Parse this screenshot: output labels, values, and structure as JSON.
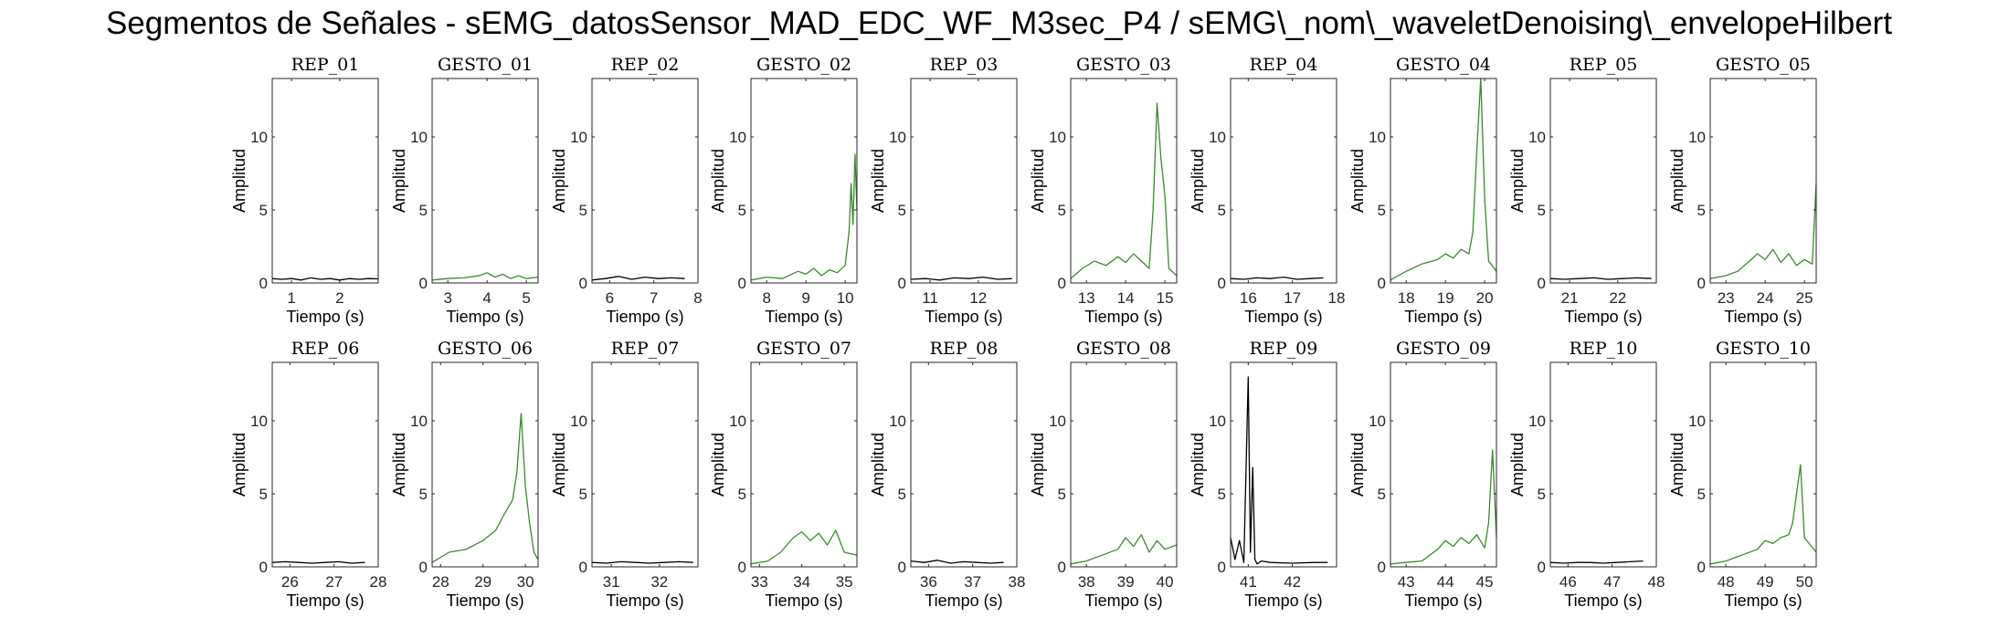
{
  "figure_title": "Segmentos de Señales - sEMG_datosSensor_MAD_EDC_WF_M3sec_P4 / sEMG\\_nom\\_waveletDenoising\\_envelopeHilbert",
  "colors": {
    "rep": "#000000",
    "gesto": "#3a8a2e",
    "axes": "#262626"
  },
  "chart_data": [
    {
      "type": "line",
      "title": "REP_01",
      "xlabel": "Tiempo (s)",
      "ylabel": "Amplitud",
      "xlim": [
        0.6,
        2.8
      ],
      "ylim": [
        0,
        14
      ],
      "xticks": [
        1,
        2
      ],
      "yticks": [
        0,
        5,
        10
      ],
      "grid": false,
      "series": [
        {
          "color": "#000000",
          "x": [
            0.6,
            0.8,
            1.0,
            1.2,
            1.4,
            1.6,
            1.8,
            2.0,
            2.2,
            2.4,
            2.6,
            2.8
          ],
          "y": [
            0.3,
            0.25,
            0.3,
            0.2,
            0.35,
            0.25,
            0.3,
            0.2,
            0.3,
            0.25,
            0.3,
            0.28
          ]
        }
      ]
    },
    {
      "type": "line",
      "title": "GESTO_01",
      "xlabel": "Tiempo (s)",
      "ylabel": "Amplitud",
      "xlim": [
        2.6,
        5.3
      ],
      "ylim": [
        0,
        14
      ],
      "xticks": [
        3,
        4,
        5
      ],
      "yticks": [
        0,
        5,
        10
      ],
      "grid": false,
      "series": [
        {
          "color": "#3a8a2e",
          "x": [
            2.6,
            3.0,
            3.4,
            3.8,
            4.0,
            4.2,
            4.4,
            4.6,
            4.8,
            5.0,
            5.3
          ],
          "y": [
            0.2,
            0.3,
            0.35,
            0.5,
            0.7,
            0.4,
            0.6,
            0.3,
            0.5,
            0.3,
            0.4
          ]
        }
      ]
    },
    {
      "type": "line",
      "title": "REP_02",
      "xlabel": "Tiempo (s)",
      "ylabel": "Amplitud",
      "xlim": [
        5.6,
        8.0
      ],
      "ylim": [
        0,
        14
      ],
      "xticks": [
        6,
        7,
        8
      ],
      "yticks": [
        0,
        5,
        10
      ],
      "grid": false,
      "series": [
        {
          "color": "#000000",
          "x": [
            5.6,
            5.9,
            6.2,
            6.5,
            6.8,
            7.1,
            7.4,
            7.7
          ],
          "y": [
            0.2,
            0.3,
            0.45,
            0.25,
            0.4,
            0.3,
            0.35,
            0.3
          ]
        }
      ]
    },
    {
      "type": "line",
      "title": "GESTO_02",
      "xlabel": "Tiempo (s)",
      "ylabel": "Amplitud",
      "xlim": [
        7.6,
        10.3
      ],
      "ylim": [
        0,
        14
      ],
      "xticks": [
        8,
        9,
        10
      ],
      "yticks": [
        0,
        5,
        10
      ],
      "grid": false,
      "series": [
        {
          "color": "#3a8a2e",
          "x": [
            7.6,
            8.0,
            8.4,
            8.8,
            9.0,
            9.2,
            9.4,
            9.6,
            9.8,
            10.0,
            10.1,
            10.15,
            10.2,
            10.25,
            10.3
          ],
          "y": [
            0.2,
            0.4,
            0.3,
            0.8,
            0.6,
            1.0,
            0.5,
            0.9,
            0.7,
            1.2,
            3.5,
            6.8,
            4.0,
            8.8,
            5.0
          ]
        }
      ]
    },
    {
      "type": "line",
      "title": "REP_03",
      "xlabel": "Tiempo (s)",
      "ylabel": "Amplitud",
      "xlim": [
        10.6,
        12.8
      ],
      "ylim": [
        0,
        14
      ],
      "xticks": [
        11,
        12
      ],
      "yticks": [
        0,
        5,
        10
      ],
      "grid": false,
      "series": [
        {
          "color": "#000000",
          "x": [
            10.6,
            10.9,
            11.2,
            11.5,
            11.8,
            12.1,
            12.4,
            12.7
          ],
          "y": [
            0.25,
            0.3,
            0.2,
            0.35,
            0.3,
            0.4,
            0.25,
            0.3
          ]
        }
      ]
    },
    {
      "type": "line",
      "title": "GESTO_03",
      "xlabel": "Tiempo (s)",
      "ylabel": "Amplitud",
      "xlim": [
        12.6,
        15.3
      ],
      "ylim": [
        0,
        14
      ],
      "xticks": [
        13,
        14,
        15
      ],
      "yticks": [
        0,
        5,
        10
      ],
      "grid": false,
      "series": [
        {
          "color": "#3a8a2e",
          "x": [
            12.6,
            12.9,
            13.2,
            13.5,
            13.8,
            14.0,
            14.2,
            14.4,
            14.6,
            14.7,
            14.8,
            14.9,
            15.0,
            15.1,
            15.3
          ],
          "y": [
            0.3,
            1.0,
            1.5,
            1.2,
            1.8,
            1.4,
            2.0,
            1.5,
            1.0,
            5.0,
            12.3,
            8.5,
            6.0,
            1.0,
            0.5
          ]
        }
      ]
    },
    {
      "type": "line",
      "title": "REP_04",
      "xlabel": "Tiempo (s)",
      "ylabel": "Amplitud",
      "xlim": [
        15.6,
        18.0
      ],
      "ylim": [
        0,
        14
      ],
      "xticks": [
        16,
        17,
        18
      ],
      "yticks": [
        0,
        5,
        10
      ],
      "grid": false,
      "series": [
        {
          "color": "#000000",
          "x": [
            15.6,
            15.9,
            16.2,
            16.5,
            16.8,
            17.1,
            17.4,
            17.7
          ],
          "y": [
            0.3,
            0.25,
            0.35,
            0.3,
            0.4,
            0.25,
            0.3,
            0.35
          ]
        }
      ]
    },
    {
      "type": "line",
      "title": "GESTO_04",
      "xlabel": "Tiempo (s)",
      "ylabel": "Amplitud",
      "xlim": [
        17.6,
        20.3
      ],
      "ylim": [
        0,
        14
      ],
      "xticks": [
        18,
        19,
        20
      ],
      "yticks": [
        0,
        5,
        10
      ],
      "grid": false,
      "series": [
        {
          "color": "#3a8a2e",
          "x": [
            17.6,
            18.0,
            18.4,
            18.8,
            19.0,
            19.2,
            19.4,
            19.6,
            19.7,
            19.8,
            19.9,
            20.0,
            20.1,
            20.3
          ],
          "y": [
            0.2,
            0.8,
            1.3,
            1.6,
            2.0,
            1.7,
            2.3,
            2.0,
            3.5,
            9.0,
            14.0,
            5.8,
            1.5,
            0.8
          ]
        }
      ]
    },
    {
      "type": "line",
      "title": "REP_05",
      "xlabel": "Tiempo (s)",
      "ylabel": "Amplitud",
      "xlim": [
        20.6,
        22.8
      ],
      "ylim": [
        0,
        14
      ],
      "xticks": [
        21,
        22
      ],
      "yticks": [
        0,
        5,
        10
      ],
      "grid": false,
      "series": [
        {
          "color": "#000000",
          "x": [
            20.6,
            20.9,
            21.2,
            21.5,
            21.8,
            22.1,
            22.4,
            22.7
          ],
          "y": [
            0.3,
            0.25,
            0.3,
            0.35,
            0.25,
            0.3,
            0.35,
            0.3
          ]
        }
      ]
    },
    {
      "type": "line",
      "title": "GESTO_05",
      "xlabel": "Tiempo (s)",
      "ylabel": "Amplitud",
      "xlim": [
        22.6,
        25.3
      ],
      "ylim": [
        0,
        14
      ],
      "xticks": [
        23,
        24,
        25
      ],
      "yticks": [
        0,
        5,
        10
      ],
      "grid": false,
      "series": [
        {
          "color": "#3a8a2e",
          "x": [
            22.6,
            23.0,
            23.3,
            23.6,
            23.8,
            24.0,
            24.2,
            24.4,
            24.6,
            24.8,
            25.0,
            25.2,
            25.3
          ],
          "y": [
            0.3,
            0.5,
            0.8,
            1.5,
            2.0,
            1.6,
            2.3,
            1.4,
            2.0,
            1.2,
            1.6,
            1.3,
            6.8
          ]
        }
      ]
    },
    {
      "type": "line",
      "title": "REP_06",
      "xlabel": "Tiempo (s)",
      "ylabel": "Amplitud",
      "xlim": [
        25.6,
        28.0
      ],
      "ylim": [
        0,
        14
      ],
      "xticks": [
        26,
        27,
        28
      ],
      "yticks": [
        0,
        5,
        10
      ],
      "grid": false,
      "series": [
        {
          "color": "#000000",
          "x": [
            25.6,
            25.9,
            26.2,
            26.5,
            26.8,
            27.1,
            27.4,
            27.7
          ],
          "y": [
            0.3,
            0.35,
            0.3,
            0.25,
            0.3,
            0.35,
            0.25,
            0.3
          ]
        }
      ]
    },
    {
      "type": "line",
      "title": "GESTO_06",
      "xlabel": "Tiempo (s)",
      "ylabel": "Amplitud",
      "xlim": [
        27.8,
        30.3
      ],
      "ylim": [
        0,
        14
      ],
      "xticks": [
        28,
        29,
        30
      ],
      "yticks": [
        0,
        5,
        10
      ],
      "grid": false,
      "series": [
        {
          "color": "#3a8a2e",
          "x": [
            27.8,
            28.2,
            28.6,
            29.0,
            29.3,
            29.5,
            29.7,
            29.8,
            29.9,
            30.0,
            30.1,
            30.2,
            30.3
          ],
          "y": [
            0.3,
            1.0,
            1.2,
            1.8,
            2.5,
            3.6,
            4.6,
            6.5,
            10.5,
            5.5,
            3.0,
            1.0,
            0.5
          ]
        }
      ]
    },
    {
      "type": "line",
      "title": "REP_07",
      "xlabel": "Tiempo (s)",
      "ylabel": "Amplitud",
      "xlim": [
        30.6,
        32.8
      ],
      "ylim": [
        0,
        14
      ],
      "xticks": [
        31,
        32
      ],
      "yticks": [
        0,
        5,
        10
      ],
      "grid": false,
      "series": [
        {
          "color": "#000000",
          "x": [
            30.6,
            30.9,
            31.2,
            31.5,
            31.8,
            32.1,
            32.4,
            32.7
          ],
          "y": [
            0.3,
            0.25,
            0.35,
            0.3,
            0.25,
            0.3,
            0.35,
            0.3
          ]
        }
      ]
    },
    {
      "type": "line",
      "title": "GESTO_07",
      "xlabel": "Tiempo (s)",
      "ylabel": "Amplitud",
      "xlim": [
        32.8,
        35.3
      ],
      "ylim": [
        0,
        14
      ],
      "xticks": [
        33,
        34,
        35
      ],
      "yticks": [
        0,
        5,
        10
      ],
      "grid": false,
      "series": [
        {
          "color": "#3a8a2e",
          "x": [
            32.8,
            33.2,
            33.5,
            33.8,
            34.0,
            34.2,
            34.4,
            34.6,
            34.8,
            35.0,
            35.3
          ],
          "y": [
            0.2,
            0.4,
            1.0,
            2.0,
            2.4,
            1.8,
            2.3,
            1.5,
            2.5,
            1.0,
            0.8
          ]
        }
      ]
    },
    {
      "type": "line",
      "title": "REP_08",
      "xlabel": "Tiempo (s)",
      "ylabel": "Amplitud",
      "xlim": [
        35.6,
        38.0
      ],
      "ylim": [
        0,
        14
      ],
      "xticks": [
        36,
        37,
        38
      ],
      "yticks": [
        0,
        5,
        10
      ],
      "grid": false,
      "series": [
        {
          "color": "#000000",
          "x": [
            35.6,
            35.9,
            36.2,
            36.5,
            36.8,
            37.1,
            37.4,
            37.7
          ],
          "y": [
            0.4,
            0.3,
            0.45,
            0.25,
            0.35,
            0.3,
            0.25,
            0.3
          ]
        }
      ]
    },
    {
      "type": "line",
      "title": "GESTO_08",
      "xlabel": "Tiempo (s)",
      "ylabel": "Amplitud",
      "xlim": [
        37.6,
        40.3
      ],
      "ylim": [
        0,
        14
      ],
      "xticks": [
        38,
        39,
        40
      ],
      "yticks": [
        0,
        5,
        10
      ],
      "grid": false,
      "series": [
        {
          "color": "#3a8a2e",
          "x": [
            37.6,
            38.0,
            38.4,
            38.8,
            39.0,
            39.2,
            39.4,
            39.6,
            39.8,
            40.0,
            40.3
          ],
          "y": [
            0.2,
            0.4,
            0.8,
            1.2,
            2.0,
            1.4,
            2.2,
            1.0,
            1.8,
            1.2,
            1.5
          ]
        }
      ]
    },
    {
      "type": "line",
      "title": "REP_09",
      "xlabel": "Tiempo (s)",
      "ylabel": "Amplitud",
      "xlim": [
        40.6,
        43.0
      ],
      "ylim": [
        0,
        14
      ],
      "xticks": [
        41,
        42
      ],
      "yticks": [
        0,
        5,
        10
      ],
      "grid": false,
      "series": [
        {
          "color": "#000000",
          "x": [
            40.6,
            40.7,
            40.8,
            40.9,
            41.0,
            41.05,
            41.1,
            41.15,
            41.2,
            41.3,
            41.5,
            42.0,
            42.5,
            42.8
          ],
          "y": [
            2.0,
            0.5,
            1.8,
            0.3,
            13.0,
            1.0,
            6.8,
            0.5,
            0.2,
            0.4,
            0.3,
            0.25,
            0.3,
            0.3
          ]
        }
      ]
    },
    {
      "type": "line",
      "title": "GESTO_09",
      "xlabel": "Tiempo (s)",
      "ylabel": "Amplitud",
      "xlim": [
        42.6,
        45.3
      ],
      "ylim": [
        0,
        14
      ],
      "xticks": [
        43,
        44,
        45
      ],
      "yticks": [
        0,
        5,
        10
      ],
      "grid": false,
      "series": [
        {
          "color": "#3a8a2e",
          "x": [
            42.6,
            43.0,
            43.4,
            43.8,
            44.0,
            44.2,
            44.4,
            44.6,
            44.8,
            45.0,
            45.1,
            45.2,
            45.3
          ],
          "y": [
            0.2,
            0.3,
            0.4,
            1.2,
            1.8,
            1.4,
            2.0,
            1.6,
            2.2,
            1.3,
            3.0,
            8.0,
            2.0
          ]
        }
      ]
    },
    {
      "type": "line",
      "title": "REP_10",
      "xlabel": "Tiempo (s)",
      "ylabel": "Amplitud",
      "xlim": [
        45.6,
        48.0
      ],
      "ylim": [
        0,
        14
      ],
      "xticks": [
        46,
        47,
        48
      ],
      "yticks": [
        0,
        5,
        10
      ],
      "grid": false,
      "series": [
        {
          "color": "#000000",
          "x": [
            45.6,
            45.9,
            46.2,
            46.5,
            46.8,
            47.1,
            47.4,
            47.7
          ],
          "y": [
            0.3,
            0.25,
            0.3,
            0.3,
            0.25,
            0.3,
            0.35,
            0.4
          ]
        }
      ]
    },
    {
      "type": "line",
      "title": "GESTO_10",
      "xlabel": "Tiempo (s)",
      "ylabel": "Amplitud",
      "xlim": [
        47.6,
        50.3
      ],
      "ylim": [
        0,
        14
      ],
      "xticks": [
        48,
        49,
        50
      ],
      "yticks": [
        0,
        5,
        10
      ],
      "grid": false,
      "series": [
        {
          "color": "#3a8a2e",
          "x": [
            47.6,
            48.0,
            48.4,
            48.8,
            49.0,
            49.2,
            49.4,
            49.6,
            49.7,
            49.8,
            49.9,
            50.0,
            50.3
          ],
          "y": [
            0.2,
            0.4,
            0.8,
            1.2,
            1.8,
            1.6,
            2.0,
            2.2,
            3.0,
            5.0,
            7.0,
            2.0,
            1.0
          ]
        }
      ]
    }
  ]
}
